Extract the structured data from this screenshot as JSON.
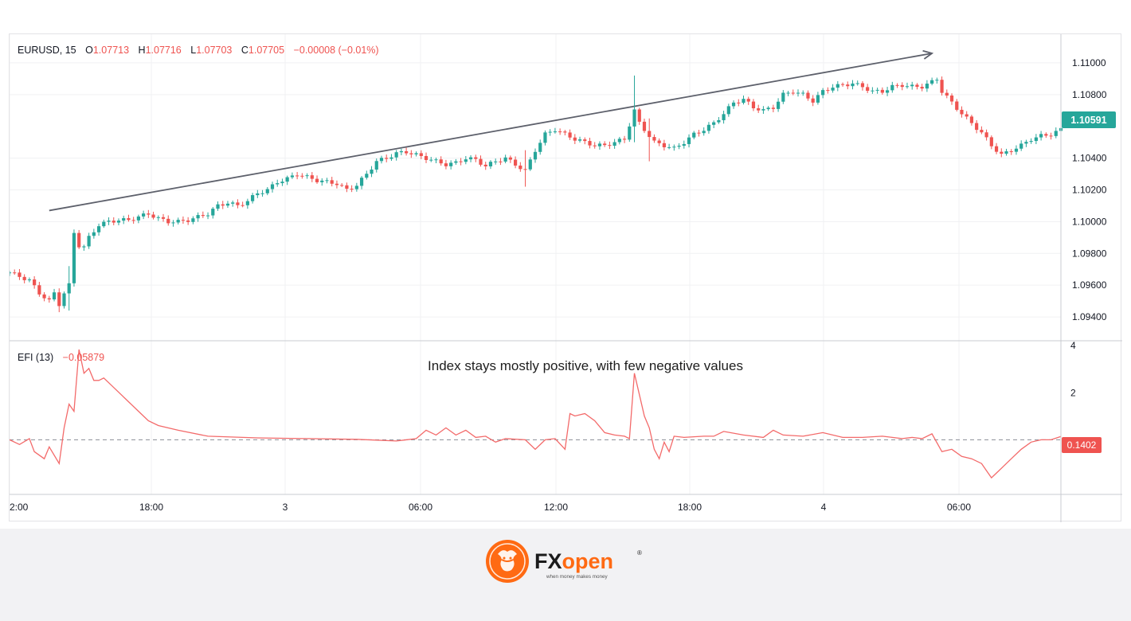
{
  "chart_data": {
    "type": "candlestick",
    "symbol": "EURUSD",
    "interval": "15",
    "legend": {
      "symbol_interval": "EURUSD, 15",
      "o_label": "O",
      "o_value": "1.07713",
      "h_label": "H",
      "h_value": "1.07716",
      "l_label": "L",
      "l_value": "1.07703",
      "c_label": "C",
      "c_value": "1.07705",
      "change": "−0.00008 (−0.01%)"
    },
    "price_axis": {
      "ticks": [
        "1.11000",
        "1.10800",
        "1.10400",
        "1.10200",
        "1.10000",
        "1.09800",
        "1.09600",
        "1.09400"
      ],
      "ylim": [
        1.0925,
        1.1114
      ]
    },
    "last_price": "1.10591",
    "time_axis": {
      "ticks": [
        "2:00",
        "18:00",
        "3",
        "06:00",
        "12:00",
        "18:00",
        "4",
        "06:00"
      ]
    },
    "price_path": [
      [
        0,
        1.0968
      ],
      [
        4,
        1.0963
      ],
      [
        6,
        1.0955
      ],
      [
        8,
        1.095
      ],
      [
        9,
        1.0955
      ],
      [
        10,
        1.0948
      ],
      [
        11,
        1.0955
      ],
      [
        12,
        1.096
      ],
      [
        13,
        1.0993
      ],
      [
        14,
        1.0985
      ],
      [
        15,
        1.0984
      ],
      [
        16,
        1.099
      ],
      [
        18,
        1.0998
      ],
      [
        20,
        1.1
      ],
      [
        22,
        1.1001
      ],
      [
        24,
        1.1001
      ],
      [
        26,
        1.1003
      ],
      [
        28,
        1.1005
      ],
      [
        30,
        1.1002
      ],
      [
        32,
        1.1
      ],
      [
        34,
        1.1
      ],
      [
        36,
        1.1001
      ],
      [
        38,
        1.1003
      ],
      [
        40,
        1.1005
      ],
      [
        42,
        1.101
      ],
      [
        44,
        1.1012
      ],
      [
        46,
        1.101
      ],
      [
        48,
        1.1013
      ],
      [
        50,
        1.1018
      ],
      [
        52,
        1.102
      ],
      [
        54,
        1.1025
      ],
      [
        56,
        1.1027
      ],
      [
        58,
        1.103
      ],
      [
        60,
        1.1028
      ],
      [
        62,
        1.1026
      ],
      [
        64,
        1.1025
      ],
      [
        66,
        1.1024
      ],
      [
        68,
        1.102
      ],
      [
        70,
        1.1023
      ],
      [
        72,
        1.103
      ],
      [
        74,
        1.1038
      ],
      [
        76,
        1.104
      ],
      [
        78,
        1.1043
      ],
      [
        80,
        1.1044
      ],
      [
        82,
        1.1042
      ],
      [
        84,
        1.104
      ],
      [
        86,
        1.1038
      ],
      [
        88,
        1.1036
      ],
      [
        90,
        1.1037
      ],
      [
        92,
        1.104
      ],
      [
        94,
        1.1039
      ],
      [
        96,
        1.1035
      ],
      [
        98,
        1.1038
      ],
      [
        100,
        1.104
      ],
      [
        102,
        1.1036
      ],
      [
        104,
        1.1032
      ],
      [
        106,
        1.1045
      ],
      [
        108,
        1.1055
      ],
      [
        110,
        1.1058
      ],
      [
        112,
        1.1055
      ],
      [
        114,
        1.1052
      ],
      [
        116,
        1.105
      ],
      [
        118,
        1.1048
      ],
      [
        120,
        1.1048
      ],
      [
        122,
        1.105
      ],
      [
        124,
        1.1052
      ],
      [
        126,
        1.107
      ],
      [
        127,
        1.1062
      ],
      [
        128,
        1.1058
      ],
      [
        130,
        1.105
      ],
      [
        132,
        1.1048
      ],
      [
        134,
        1.1046
      ],
      [
        136,
        1.105
      ],
      [
        138,
        1.1055
      ],
      [
        140,
        1.1058
      ],
      [
        142,
        1.1062
      ],
      [
        144,
        1.1068
      ],
      [
        146,
        1.1075
      ],
      [
        148,
        1.1077
      ],
      [
        150,
        1.1072
      ],
      [
        152,
        1.107
      ],
      [
        154,
        1.1072
      ],
      [
        156,
        1.108
      ],
      [
        158,
        1.1082
      ],
      [
        160,
        1.108
      ],
      [
        162,
        1.1076
      ],
      [
        164,
        1.1082
      ],
      [
        166,
        1.1085
      ],
      [
        168,
        1.1086
      ],
      [
        170,
        1.1087
      ],
      [
        172,
        1.1085
      ],
      [
        174,
        1.1082
      ],
      [
        176,
        1.1082
      ],
      [
        178,
        1.1085
      ],
      [
        180,
        1.1086
      ],
      [
        182,
        1.1085
      ],
      [
        184,
        1.1085
      ],
      [
        186,
        1.1088
      ],
      [
        187,
        1.109
      ],
      [
        188,
        1.1082
      ],
      [
        190,
        1.1075
      ],
      [
        192,
        1.1068
      ],
      [
        194,
        1.1062
      ],
      [
        196,
        1.1056
      ],
      [
        198,
        1.1048
      ],
      [
        200,
        1.1042
      ],
      [
        202,
        1.1045
      ],
      [
        204,
        1.1048
      ],
      [
        206,
        1.1052
      ],
      [
        208,
        1.1054
      ],
      [
        210,
        1.1055
      ],
      [
        212,
        1.1058
      ]
    ],
    "spikes": [
      {
        "x": 126,
        "high": 1.1092,
        "low": 1.105
      },
      {
        "x": 129,
        "high": 1.1065,
        "low": 1.1038
      },
      {
        "x": 104,
        "high": 1.1045,
        "low": 1.1022
      },
      {
        "x": 10,
        "high": 1.0958,
        "low": 1.0943
      },
      {
        "x": 12,
        "high": 1.0972,
        "low": 1.0944
      }
    ],
    "trendline": {
      "start": [
        8,
        1.1007
      ],
      "end": [
        186,
        1.1106
      ]
    },
    "indicator": {
      "name": "EFI (13)",
      "value": "−0.05879",
      "last_value": "0.1402",
      "axis_ticks": [
        "4",
        "2"
      ],
      "ylim": [
        -2.3,
        4.0
      ],
      "annotation": "Index stays mostly positive, with few negative values",
      "series": [
        [
          0,
          0.0
        ],
        [
          2,
          -0.2
        ],
        [
          4,
          0.05
        ],
        [
          5,
          -0.5
        ],
        [
          7,
          -0.8
        ],
        [
          8,
          -0.3
        ],
        [
          10,
          -1.0
        ],
        [
          11,
          0.5
        ],
        [
          12,
          1.5
        ],
        [
          13,
          1.2
        ],
        [
          14,
          3.8
        ],
        [
          15,
          2.8
        ],
        [
          16,
          3.0
        ],
        [
          17,
          2.5
        ],
        [
          18,
          2.5
        ],
        [
          19,
          2.6
        ],
        [
          20,
          2.4
        ],
        [
          22,
          2.0
        ],
        [
          24,
          1.6
        ],
        [
          26,
          1.2
        ],
        [
          28,
          0.8
        ],
        [
          30,
          0.6
        ],
        [
          34,
          0.4
        ],
        [
          40,
          0.15
        ],
        [
          50,
          0.08
        ],
        [
          60,
          0.05
        ],
        [
          70,
          0.02
        ],
        [
          78,
          -0.05
        ],
        [
          82,
          0.05
        ],
        [
          84,
          0.4
        ],
        [
          86,
          0.2
        ],
        [
          88,
          0.5
        ],
        [
          90,
          0.2
        ],
        [
          92,
          0.4
        ],
        [
          94,
          0.1
        ],
        [
          96,
          0.15
        ],
        [
          98,
          -0.1
        ],
        [
          100,
          0.05
        ],
        [
          104,
          0.0
        ],
        [
          106,
          -0.4
        ],
        [
          108,
          0.0
        ],
        [
          110,
          0.05
        ],
        [
          112,
          -0.4
        ],
        [
          113,
          1.1
        ],
        [
          114,
          1.0
        ],
        [
          116,
          1.1
        ],
        [
          118,
          0.8
        ],
        [
          120,
          0.3
        ],
        [
          122,
          0.2
        ],
        [
          124,
          0.15
        ],
        [
          125,
          0.05
        ],
        [
          126,
          2.8
        ],
        [
          128,
          1.0
        ],
        [
          129,
          0.5
        ],
        [
          130,
          -0.4
        ],
        [
          131,
          -0.8
        ],
        [
          132,
          -0.1
        ],
        [
          133,
          -0.5
        ],
        [
          134,
          0.15
        ],
        [
          136,
          0.1
        ],
        [
          140,
          0.15
        ],
        [
          142,
          0.15
        ],
        [
          144,
          0.35
        ],
        [
          148,
          0.2
        ],
        [
          152,
          0.1
        ],
        [
          154,
          0.4
        ],
        [
          156,
          0.2
        ],
        [
          160,
          0.15
        ],
        [
          164,
          0.3
        ],
        [
          168,
          0.1
        ],
        [
          172,
          0.1
        ],
        [
          176,
          0.15
        ],
        [
          180,
          0.05
        ],
        [
          182,
          0.1
        ],
        [
          184,
          0.05
        ],
        [
          186,
          0.25
        ],
        [
          188,
          -0.5
        ],
        [
          190,
          -0.4
        ],
        [
          192,
          -0.7
        ],
        [
          194,
          -0.8
        ],
        [
          196,
          -1.0
        ],
        [
          197,
          -1.3
        ],
        [
          198,
          -1.6
        ],
        [
          199,
          -1.4
        ],
        [
          200,
          -1.2
        ],
        [
          202,
          -0.8
        ],
        [
          204,
          -0.4
        ],
        [
          206,
          -0.1
        ],
        [
          208,
          0.0
        ],
        [
          210,
          0.0
        ],
        [
          212,
          0.14
        ]
      ]
    },
    "colors": {
      "up": "#26a69a",
      "down": "#ef5350",
      "efi": "#f36a6a",
      "label_up": "#26a69a",
      "label_down": "#ef5350",
      "trendline": "#5d606b"
    }
  },
  "brand": {
    "name": "FXopen",
    "tagline": "when money makes money",
    "colors": {
      "orange": "#ff6a13",
      "dark": "#1b1b1b"
    }
  }
}
